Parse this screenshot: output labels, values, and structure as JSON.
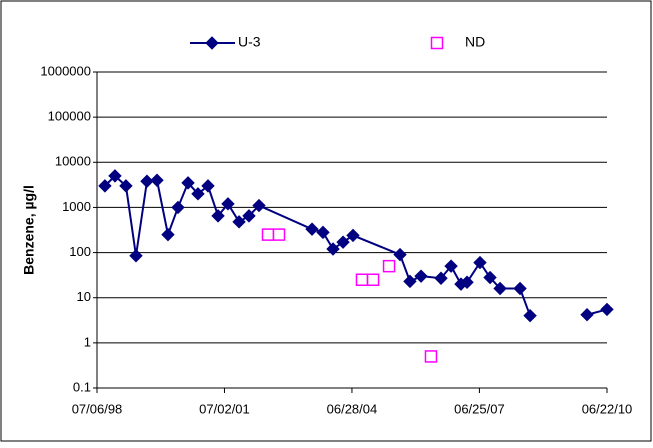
{
  "chart_data": {
    "type": "line",
    "ylabel": "Benzene, µg/l",
    "yscale": "log",
    "ylim": [
      0.1,
      1000000
    ],
    "yticks": [
      1000000,
      100000,
      10000,
      1000,
      100,
      10,
      1,
      0.1
    ],
    "grid": true,
    "legend": "top",
    "xlim": [
      "1998-07-06",
      "2010-06-22"
    ],
    "xticks": [
      {
        "value": "1998-07-06",
        "label": "07/06/98"
      },
      {
        "value": "2001-07-02",
        "label": "07/02/01"
      },
      {
        "value": "2004-06-28",
        "label": "06/28/04"
      },
      {
        "value": "2007-06-25",
        "label": "06/25/07"
      },
      {
        "value": "2010-06-22",
        "label": "06/22/10"
      }
    ],
    "series": [
      {
        "name": "U-3",
        "color": "#000080",
        "marker": "diamond",
        "line": true,
        "x": [
          "1998-09-12",
          "1998-12-07",
          "1999-03-11",
          "1999-06-05",
          "1999-09-07",
          "1999-12-02",
          "2000-03-05",
          "2000-05-30",
          "2000-08-24",
          "2000-11-17",
          "2001-02-11",
          "2001-05-08",
          "2001-08-01",
          "2001-11-04",
          "2002-01-28",
          "2002-04-24",
          "2003-07-22",
          "2003-10-24",
          "2004-01-18",
          "2004-04-13",
          "2004-07-07",
          "2005-08-14",
          "2005-11-07",
          "2006-02-10",
          "2006-07-31",
          "2006-10-25",
          "2007-01-18",
          "2007-03-11",
          "2007-06-30",
          "2007-09-24",
          "2007-12-19",
          "2008-06-07",
          "2008-09-01",
          null,
          "2010-01-02",
          "2010-06-22"
        ],
        "values": [
          3000,
          5000,
          3000,
          85,
          3800,
          4000,
          250,
          1000,
          3500,
          2000,
          3000,
          650,
          1200,
          480,
          650,
          1100,
          330,
          280,
          120,
          170,
          240,
          90,
          23,
          30,
          27,
          50,
          20,
          22,
          60,
          28,
          16,
          16,
          4,
          null,
          4.2,
          5.5
        ]
      },
      {
        "name": "ND",
        "color": "#ff00ff",
        "marker": "square",
        "line": false,
        "x": [
          "2002-07-10",
          "2002-10-12",
          "2004-09-22",
          "2004-12-26",
          "2005-05-12",
          "2006-05-06"
        ],
        "values": [
          250,
          250,
          25,
          25,
          50,
          0.5
        ]
      }
    ]
  }
}
